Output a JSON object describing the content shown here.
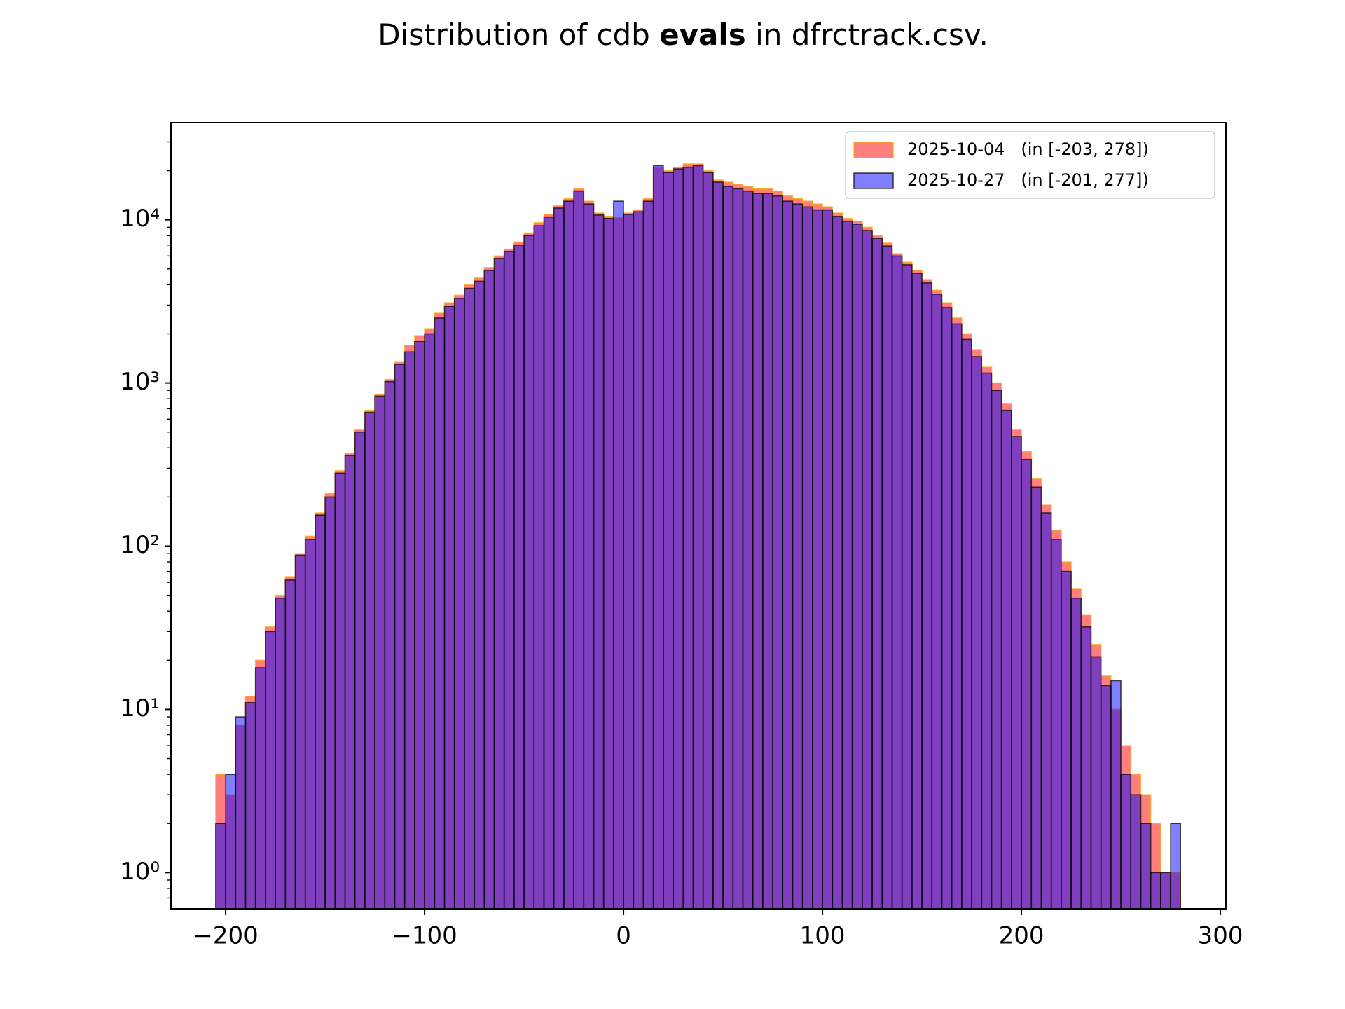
{
  "chart_data": {
    "type": "histogram",
    "title": [
      "Distribution of cdb ",
      "evals",
      " in dfrctrack.csv."
    ],
    "bins": [
      -205,
      -200,
      -195,
      -190,
      -185,
      -180,
      -175,
      -170,
      -165,
      -160,
      -155,
      -150,
      -145,
      -140,
      -135,
      -130,
      -125,
      -120,
      -115,
      -110,
      -105,
      -100,
      -95,
      -90,
      -85,
      -80,
      -75,
      -70,
      -65,
      -60,
      -55,
      -50,
      -45,
      -40,
      -35,
      -30,
      -25,
      -20,
      -15,
      -10,
      -5,
      0,
      5,
      10,
      15,
      20,
      25,
      30,
      35,
      40,
      45,
      50,
      55,
      60,
      65,
      70,
      75,
      80,
      85,
      90,
      95,
      100,
      105,
      110,
      115,
      120,
      125,
      130,
      135,
      140,
      145,
      150,
      155,
      160,
      165,
      170,
      175,
      180,
      185,
      190,
      195,
      200,
      205,
      210,
      215,
      220,
      225,
      230,
      235,
      240,
      245,
      250,
      255,
      260,
      265,
      270,
      275,
      280
    ],
    "series": [
      {
        "name": "2025-10-04   (in [-203, 278])",
        "color": "#ff0000",
        "edgecolor": "#ffa500",
        "values": [
          4,
          3,
          8,
          12,
          20,
          32,
          50,
          65,
          90,
          115,
          160,
          210,
          290,
          370,
          520,
          680,
          850,
          1050,
          1350,
          1700,
          1950,
          2150,
          2700,
          3100,
          3450,
          4000,
          4400,
          5100,
          6000,
          6600,
          7300,
          8300,
          9600,
          10800,
          12200,
          13500,
          15500,
          13000,
          11000,
          10500,
          10300,
          11000,
          11500,
          13500,
          21000,
          20000,
          21000,
          22000,
          22000,
          20000,
          17500,
          17000,
          16500,
          16000,
          15500,
          15500,
          15000,
          14000,
          13500,
          13000,
          12500,
          12000,
          11000,
          10200,
          9800,
          9000,
          8000,
          7200,
          6200,
          5500,
          4900,
          4300,
          3700,
          3100,
          2500,
          2000,
          1600,
          1250,
          1000,
          750,
          520,
          380,
          260,
          180,
          125,
          80,
          55,
          38,
          25,
          16,
          10,
          6,
          4,
          3,
          2,
          1,
          1
        ]
      },
      {
        "name": "2025-10-27   (in [-201, 277])",
        "color": "#0000ff",
        "edgecolor": "#000000",
        "values": [
          2,
          4,
          9,
          11,
          18,
          30,
          48,
          62,
          88,
          110,
          155,
          200,
          280,
          360,
          500,
          660,
          830,
          1020,
          1300,
          1550,
          1800,
          2000,
          2500,
          2950,
          3300,
          3800,
          4200,
          4900,
          5800,
          6400,
          7000,
          8000,
          9200,
          10400,
          11800,
          13000,
          15000,
          12500,
          10700,
          10200,
          13000,
          10800,
          11200,
          13000,
          21500,
          19500,
          20500,
          21000,
          21500,
          19500,
          17000,
          16000,
          15500,
          15000,
          14500,
          14500,
          14000,
          13000,
          12500,
          12000,
          11500,
          11500,
          10500,
          9800,
          9400,
          8600,
          7700,
          6900,
          6000,
          5300,
          4700,
          4100,
          3500,
          2900,
          2300,
          1850,
          1450,
          1150,
          900,
          680,
          470,
          340,
          230,
          160,
          110,
          70,
          48,
          32,
          21,
          14,
          15,
          4,
          3,
          2,
          1,
          1,
          2
        ]
      }
    ],
    "xlim": [
      -227.5,
      302.8
    ],
    "xticks": [
      {
        "value": -200,
        "label": "−200"
      },
      {
        "value": -100,
        "label": "−100"
      },
      0,
      100,
      200,
      300
    ],
    "ylim": [
      0.6,
      39400
    ],
    "yscale": "log",
    "yticks": [
      {
        "value": 1,
        "label": "10⁰"
      },
      {
        "value": 10,
        "label": "10¹"
      },
      {
        "value": 100,
        "label": "10²"
      },
      {
        "value": 1000,
        "label": "10³"
      },
      {
        "value": 10000,
        "label": "10⁴"
      }
    ],
    "yminorticks": [
      0.7,
      0.8,
      0.9,
      2,
      3,
      4,
      5,
      6,
      7,
      8,
      9,
      20,
      30,
      40,
      50,
      60,
      70,
      80,
      90,
      200,
      300,
      400,
      500,
      600,
      700,
      800,
      900,
      2000,
      3000,
      4000,
      5000,
      6000,
      7000,
      8000,
      9000,
      20000,
      30000
    ],
    "alpha": 0.5,
    "legend": "upper right"
  }
}
